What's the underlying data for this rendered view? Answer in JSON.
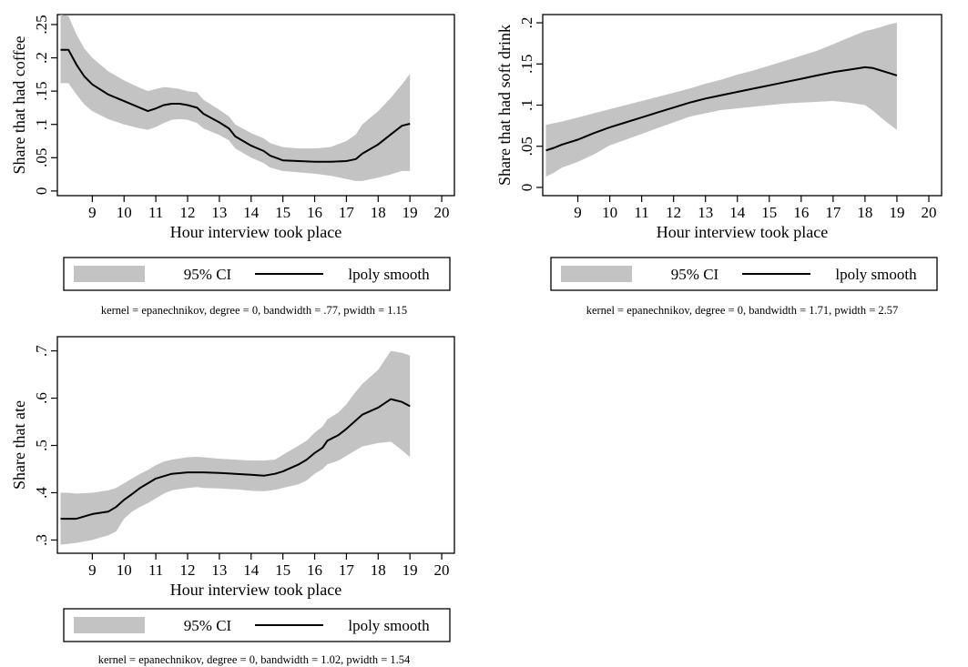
{
  "chart_data": [
    {
      "type": "area",
      "title": "",
      "xlabel": "Hour interview took place",
      "ylabel": "Share that had coffee",
      "xticks": [
        9,
        10,
        11,
        12,
        13,
        14,
        15,
        16,
        17,
        18,
        19,
        20
      ],
      "yticks": [
        0,
        0.05,
        0.1,
        0.15,
        0.2,
        0.25
      ],
      "ytick_labels": [
        "0",
        ".05",
        ".1",
        ".15",
        ".2",
        ".25"
      ],
      "xlim": [
        7.9,
        20.4
      ],
      "ylim": [
        -0.007,
        0.265
      ],
      "x": [
        8.0,
        8.25,
        8.5,
        8.75,
        9.0,
        9.5,
        10.0,
        10.5,
        10.75,
        11.0,
        11.25,
        11.5,
        11.75,
        12.0,
        12.3,
        12.5,
        13.0,
        13.3,
        13.5,
        14.0,
        14.4,
        14.6,
        15.0,
        15.5,
        16.0,
        16.5,
        17.0,
        17.3,
        17.5,
        18.0,
        18.4,
        18.75,
        19.0
      ],
      "series": [
        {
          "name": "lpoly smooth",
          "values": [
            0.212,
            0.212,
            0.19,
            0.172,
            0.16,
            0.145,
            0.135,
            0.125,
            0.12,
            0.124,
            0.129,
            0.131,
            0.131,
            0.129,
            0.125,
            0.116,
            0.103,
            0.094,
            0.082,
            0.068,
            0.06,
            0.053,
            0.046,
            0.045,
            0.044,
            0.044,
            0.045,
            0.048,
            0.056,
            0.07,
            0.085,
            0.098,
            0.101
          ]
        },
        {
          "name": "95% CI upper",
          "values": [
            0.265,
            0.263,
            0.235,
            0.214,
            0.2,
            0.18,
            0.166,
            0.155,
            0.15,
            0.153,
            0.156,
            0.155,
            0.153,
            0.15,
            0.148,
            0.137,
            0.122,
            0.112,
            0.1,
            0.087,
            0.079,
            0.072,
            0.066,
            0.064,
            0.064,
            0.066,
            0.075,
            0.085,
            0.1,
            0.12,
            0.14,
            0.16,
            0.176
          ]
        },
        {
          "name": "95% CI lower",
          "values": [
            0.162,
            0.162,
            0.145,
            0.13,
            0.12,
            0.108,
            0.1,
            0.094,
            0.092,
            0.096,
            0.102,
            0.107,
            0.108,
            0.107,
            0.102,
            0.094,
            0.084,
            0.076,
            0.064,
            0.05,
            0.042,
            0.035,
            0.03,
            0.028,
            0.026,
            0.023,
            0.018,
            0.015,
            0.015,
            0.02,
            0.025,
            0.03,
            0.03
          ]
        }
      ],
      "legend": {
        "ci_label": "95% CI",
        "line_label": "lpoly smooth",
        "placement": "bottom"
      },
      "note": "kernel = epanechnikov, degree = 0, bandwidth = .77, pwidth = 1.15",
      "grid": false
    },
    {
      "type": "area",
      "title": "",
      "xlabel": "Hour interview took place",
      "ylabel": "Share that had soft drink",
      "xticks": [
        9,
        10,
        11,
        12,
        13,
        14,
        15,
        16,
        17,
        18,
        19,
        20
      ],
      "yticks": [
        0,
        0.05,
        0.1,
        0.15,
        0.2
      ],
      "ytick_labels": [
        "0",
        ".05",
        ".1",
        ".15",
        ".2"
      ],
      "xlim": [
        7.9,
        20.4
      ],
      "ylim": [
        -0.01,
        0.21
      ],
      "x": [
        8.0,
        8.25,
        8.5,
        9.0,
        9.5,
        10.0,
        10.5,
        11.0,
        11.5,
        12.0,
        12.5,
        13.0,
        13.5,
        14.0,
        14.5,
        15.0,
        15.5,
        16.0,
        16.5,
        17.0,
        17.5,
        18.0,
        18.25,
        18.5,
        18.75,
        19.0
      ],
      "series": [
        {
          "name": "lpoly smooth",
          "values": [
            0.045,
            0.048,
            0.052,
            0.058,
            0.066,
            0.073,
            0.079,
            0.085,
            0.091,
            0.097,
            0.103,
            0.108,
            0.112,
            0.116,
            0.12,
            0.124,
            0.128,
            0.132,
            0.136,
            0.14,
            0.143,
            0.146,
            0.145,
            0.142,
            0.139,
            0.136
          ]
        },
        {
          "name": "95% CI upper",
          "values": [
            0.076,
            0.078,
            0.08,
            0.085,
            0.09,
            0.095,
            0.1,
            0.105,
            0.11,
            0.115,
            0.12,
            0.126,
            0.131,
            0.137,
            0.142,
            0.148,
            0.154,
            0.16,
            0.166,
            0.174,
            0.182,
            0.19,
            0.192,
            0.195,
            0.198,
            0.2
          ]
        },
        {
          "name": "95% CI lower",
          "values": [
            0.013,
            0.018,
            0.024,
            0.031,
            0.04,
            0.051,
            0.058,
            0.065,
            0.072,
            0.079,
            0.086,
            0.09,
            0.094,
            0.096,
            0.098,
            0.1,
            0.102,
            0.103,
            0.104,
            0.105,
            0.103,
            0.1,
            0.093,
            0.085,
            0.077,
            0.07
          ]
        }
      ],
      "legend": {
        "ci_label": "95% CI",
        "line_label": "lpoly smooth",
        "placement": "bottom"
      },
      "note": "kernel = epanechnikov, degree = 0, bandwidth = 1.71, pwidth = 2.57",
      "grid": false
    },
    {
      "type": "area",
      "title": "",
      "xlabel": "Hour interview took place",
      "ylabel": "Share that ate",
      "xticks": [
        9,
        10,
        11,
        12,
        13,
        14,
        15,
        16,
        17,
        18,
        19,
        20
      ],
      "yticks": [
        0.3,
        0.4,
        0.5,
        0.6,
        0.7
      ],
      "ytick_labels": [
        ".3",
        ".4",
        ".5",
        ".6",
        ".7"
      ],
      "xlim": [
        7.9,
        20.4
      ],
      "ylim": [
        0.272,
        0.73
      ],
      "x": [
        8.0,
        8.25,
        8.5,
        9.0,
        9.5,
        9.75,
        10.0,
        10.25,
        10.5,
        10.75,
        11.0,
        11.25,
        11.5,
        12.0,
        12.3,
        12.5,
        13.0,
        13.5,
        14.0,
        14.4,
        14.75,
        15.0,
        15.5,
        15.75,
        16.0,
        16.25,
        16.4,
        16.75,
        17.0,
        17.25,
        17.5,
        18.0,
        18.4,
        18.75,
        19.0
      ],
      "series": [
        {
          "name": "lpoly smooth",
          "values": [
            0.345,
            0.345,
            0.345,
            0.355,
            0.36,
            0.37,
            0.385,
            0.397,
            0.41,
            0.42,
            0.43,
            0.435,
            0.44,
            0.443,
            0.443,
            0.443,
            0.442,
            0.44,
            0.438,
            0.436,
            0.44,
            0.445,
            0.46,
            0.47,
            0.484,
            0.495,
            0.51,
            0.522,
            0.535,
            0.55,
            0.565,
            0.58,
            0.598,
            0.592,
            0.583
          ]
        },
        {
          "name": "95% CI upper",
          "values": [
            0.4,
            0.4,
            0.398,
            0.4,
            0.405,
            0.41,
            0.42,
            0.43,
            0.44,
            0.448,
            0.458,
            0.466,
            0.47,
            0.475,
            0.476,
            0.475,
            0.472,
            0.47,
            0.468,
            0.468,
            0.47,
            0.48,
            0.5,
            0.51,
            0.527,
            0.54,
            0.555,
            0.57,
            0.587,
            0.61,
            0.63,
            0.66,
            0.7,
            0.696,
            0.69
          ]
        },
        {
          "name": "95% CI lower",
          "values": [
            0.29,
            0.292,
            0.294,
            0.3,
            0.31,
            0.318,
            0.345,
            0.36,
            0.37,
            0.378,
            0.388,
            0.398,
            0.405,
            0.41,
            0.412,
            0.41,
            0.409,
            0.407,
            0.404,
            0.403,
            0.406,
            0.41,
            0.418,
            0.426,
            0.44,
            0.45,
            0.46,
            0.468,
            0.478,
            0.488,
            0.498,
            0.505,
            0.508,
            0.49,
            0.475
          ]
        }
      ],
      "legend": {
        "ci_label": "95% CI",
        "line_label": "lpoly smooth",
        "placement": "bottom"
      },
      "note": "kernel = epanechnikov, degree = 0, bandwidth = 1.02, pwidth = 1.54",
      "grid": false
    }
  ],
  "colors": {
    "ci_fill": "#c3c3c3",
    "line": "#000000",
    "frame": "#000000",
    "background": "#ffffff"
  }
}
